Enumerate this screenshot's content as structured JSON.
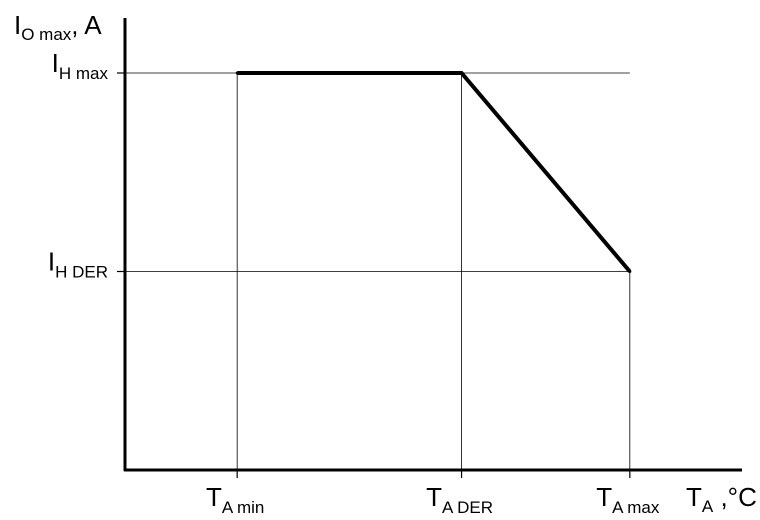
{
  "chart_data": {
    "type": "line",
    "title": "",
    "ylabel": {
      "main": "I",
      "sub": "O max",
      "suffix": ", A"
    },
    "xlabel": {
      "main": "T",
      "sub": "A",
      "suffix": " ,°C"
    },
    "x_ticks": [
      {
        "key": "t_a_min",
        "main": "T",
        "sub": "A min",
        "value": 0.2
      },
      {
        "key": "t_a_der",
        "main": "T",
        "sub": "A DER",
        "value": 0.6
      },
      {
        "key": "t_a_max",
        "main": "T",
        "sub": "A max",
        "value": 0.9
      }
    ],
    "y_ticks": [
      {
        "key": "i_h_max",
        "main": "I",
        "sub": "H max",
        "value": 1.0
      },
      {
        "key": "i_h_der",
        "main": "I",
        "sub": "H DER",
        "value": 0.5
      }
    ],
    "series": [
      {
        "points": [
          {
            "x": 0.2,
            "y": 1.0
          },
          {
            "x": 0.6,
            "y": 1.0
          },
          {
            "x": 0.9,
            "y": 0.5
          }
        ]
      }
    ],
    "xlim": [
      0,
      1.1
    ],
    "ylim": [
      0,
      1.0
    ],
    "grid": false,
    "reference_lines": true,
    "colors": {
      "curve": "#000000",
      "axes": "#000000",
      "reference": "#000000"
    }
  }
}
